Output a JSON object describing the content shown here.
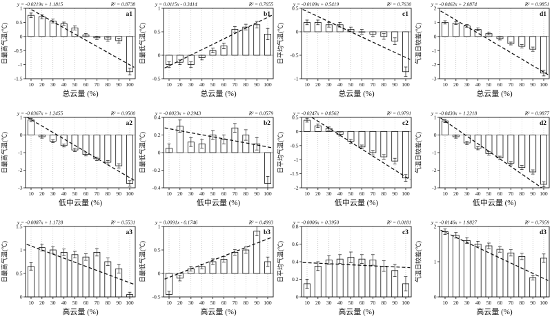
{
  "figure": {
    "layout": "3x4 grid of bar charts with error bars and dashed linear trend lines",
    "background": "#ffffff",
    "accent_color": "#111111",
    "bar_fill": "#ffffff",
    "bar_stroke": "#111111"
  },
  "chart_data": [
    {
      "type": "bar",
      "panel": "a1",
      "equation": "y = -0.0219x + 1.1815",
      "r2_label": "R² = 0.8738",
      "ylabel": "日最高气温(℃)",
      "xlabel": "总云量 (%)",
      "x": [
        10,
        20,
        30,
        40,
        50,
        60,
        70,
        80,
        90,
        100
      ],
      "xticks": [
        10,
        20,
        30,
        40,
        50,
        60,
        70,
        80,
        90,
        100
      ],
      "xlim": [
        5,
        105
      ],
      "ylim": [
        -1.5,
        1
      ],
      "yticks": [
        1,
        0.5,
        0,
        -0.5,
        -1,
        -1.5
      ],
      "values": [
        0.75,
        0.7,
        0.55,
        0.45,
        0.3,
        0.05,
        -0.05,
        -0.1,
        -0.15,
        -1.25
      ],
      "errors": [
        0.08,
        0.07,
        0.07,
        0.06,
        0.07,
        0.06,
        0.06,
        0.07,
        0.08,
        0.12
      ],
      "trend": {
        "slope": -0.0219,
        "intercept": 1.1815
      },
      "grid": "vertical-dotted",
      "legend": "none"
    },
    {
      "type": "bar",
      "panel": "b1",
      "equation": "y = 0.0115x - 0.3414",
      "r2_label": "R² = 0.7655",
      "ylabel": "日最低气温(℃)",
      "xlabel": "总云量 (%)",
      "x": [
        10,
        20,
        30,
        40,
        50,
        60,
        70,
        80,
        90,
        100
      ],
      "xticks": [
        10,
        20,
        30,
        40,
        50,
        60,
        70,
        80,
        90,
        100
      ],
      "xlim": [
        5,
        105
      ],
      "ylim": [
        -0.5,
        1
      ],
      "yticks": [
        1,
        0.5,
        0,
        -0.5
      ],
      "values": [
        -0.2,
        -0.15,
        -0.2,
        -0.05,
        0.1,
        0.2,
        0.55,
        0.6,
        0.65,
        0.45
      ],
      "errors": [
        0.06,
        0.05,
        0.06,
        0.05,
        0.05,
        0.06,
        0.06,
        0.06,
        0.07,
        0.12
      ],
      "trend": {
        "slope": 0.0115,
        "intercept": -0.3414
      },
      "grid": "vertical-dotted",
      "legend": "none"
    },
    {
      "type": "bar",
      "panel": "c1",
      "equation": "y = -0.0109x + 0.5419",
      "r2_label": "R² = 0.7630",
      "ylabel": "日平均气温(℃)",
      "xlabel": "总云量 (%)",
      "x": [
        10,
        20,
        30,
        40,
        50,
        60,
        70,
        80,
        90,
        100
      ],
      "xticks": [
        10,
        20,
        30,
        40,
        50,
        60,
        70,
        80,
        90,
        100
      ],
      "xlim": [
        5,
        105
      ],
      "ylim": [
        -1,
        0.5
      ],
      "yticks": [
        0.5,
        0,
        -0.5,
        -1
      ],
      "values": [
        0.2,
        0.2,
        0.15,
        0.15,
        0.05,
        0,
        -0.05,
        -0.1,
        -0.2,
        -0.85
      ],
      "errors": [
        0.05,
        0.05,
        0.05,
        0.05,
        0.05,
        0.05,
        0.05,
        0.06,
        0.07,
        0.1
      ],
      "trend": {
        "slope": -0.0109,
        "intercept": 0.5419
      },
      "grid": "vertical-dotted",
      "legend": "none"
    },
    {
      "type": "bar",
      "panel": "d1",
      "equation": "y = -0.0462x + 2.0874",
      "r2_label": "R² = 0.9851",
      "ylabel": "气温日较差(℃)",
      "xlabel": "总云量 (%)",
      "x": [
        10,
        20,
        30,
        40,
        50,
        60,
        70,
        80,
        90,
        100
      ],
      "xticks": [
        10,
        20,
        30,
        40,
        50,
        60,
        70,
        80,
        90,
        100
      ],
      "xlim": [
        5,
        105
      ],
      "ylim": [
        -3,
        2
      ],
      "yticks": [
        2,
        1,
        0,
        -1,
        -2,
        -3
      ],
      "values": [
        1.0,
        0.95,
        0.75,
        0.5,
        0.2,
        -0.15,
        -0.5,
        -0.7,
        -0.9,
        -2.6
      ],
      "errors": [
        0.12,
        0.1,
        0.1,
        0.1,
        0.1,
        0.1,
        0.1,
        0.12,
        0.15,
        0.2
      ],
      "trend": {
        "slope": -0.0462,
        "intercept": 2.0874
      },
      "grid": "vertical-dotted",
      "legend": "none"
    },
    {
      "type": "bar",
      "panel": "a2",
      "equation": "y = -0.0367x + 1.2455",
      "r2_label": "R² = 0.9500",
      "ylabel": "日最高气温(℃)",
      "xlabel": "低中云量 (%)",
      "x": [
        10,
        20,
        30,
        40,
        50,
        60,
        70,
        80,
        90,
        100
      ],
      "xticks": [
        10,
        20,
        30,
        40,
        50,
        60,
        70,
        80,
        90,
        100
      ],
      "xlim": [
        5,
        105
      ],
      "ylim": [
        -3,
        1
      ],
      "yticks": [
        1,
        0,
        -1,
        -2,
        -3
      ],
      "values": [
        0.85,
        -0.1,
        -0.35,
        -0.6,
        -0.85,
        -1.1,
        -1.35,
        -1.55,
        -1.75,
        -2.75
      ],
      "errors": [
        0.1,
        0.08,
        0.08,
        0.08,
        0.09,
        0.09,
        0.1,
        0.1,
        0.12,
        0.15
      ],
      "trend": {
        "slope": -0.0367,
        "intercept": 1.2455
      },
      "grid": "vertical-dotted",
      "legend": "none"
    },
    {
      "type": "bar",
      "panel": "b2",
      "equation": "y = -0.0023x + 0.2943",
      "r2_label": "R² = 0.0579",
      "ylabel": "日最低气温(℃)",
      "xlabel": "低中云量 (%)",
      "x": [
        10,
        20,
        30,
        40,
        50,
        60,
        70,
        80,
        90,
        100
      ],
      "xticks": [
        10,
        20,
        30,
        40,
        50,
        60,
        70,
        80,
        90,
        100
      ],
      "xlim": [
        5,
        105
      ],
      "ylim": [
        -0.4,
        0.4
      ],
      "yticks": [
        0.4,
        0.2,
        0,
        -0.2,
        -0.4
      ],
      "values": [
        0.05,
        0.3,
        0.12,
        0.1,
        0.2,
        0.15,
        0.28,
        0.2,
        0.1,
        -0.35
      ],
      "errors": [
        0.05,
        0.07,
        0.05,
        0.05,
        0.05,
        0.05,
        0.05,
        0.06,
        0.07,
        0.08
      ],
      "trend": {
        "slope": -0.0023,
        "intercept": 0.2943
      },
      "grid": "vertical-dotted",
      "legend": "none"
    },
    {
      "type": "bar",
      "panel": "c2",
      "equation": "y = -0.0247x + 0.8562",
      "r2_label": "R² = 0.9791",
      "ylabel": "日平均气温(℃)",
      "xlabel": "低中云量 (%)",
      "x": [
        10,
        20,
        30,
        40,
        50,
        60,
        70,
        80,
        90,
        100
      ],
      "xticks": [
        10,
        20,
        30,
        40,
        50,
        60,
        70,
        80,
        90,
        100
      ],
      "xlim": [
        5,
        105
      ],
      "ylim": [
        -2,
        0.5
      ],
      "yticks": [
        0.5,
        0,
        -0.5,
        -1,
        -1.5,
        -2
      ],
      "values": [
        0.4,
        0.2,
        0.1,
        -0.1,
        -0.35,
        -0.55,
        -0.75,
        -0.9,
        -1.05,
        -1.65
      ],
      "errors": [
        0.07,
        0.06,
        0.06,
        0.06,
        0.07,
        0.07,
        0.08,
        0.08,
        0.1,
        0.12
      ],
      "trend": {
        "slope": -0.0247,
        "intercept": 0.8562
      },
      "grid": "vertical-dotted",
      "legend": "none"
    },
    {
      "type": "bar",
      "panel": "d2",
      "equation": "y = -0.0430x + 1.2218",
      "r2_label": "R² = 0.9877",
      "ylabel": "气温日较差(℃)",
      "xlabel": "低中云量 (%)",
      "x": [
        10,
        20,
        30,
        40,
        50,
        60,
        70,
        80,
        90,
        100
      ],
      "xticks": [
        10,
        20,
        30,
        40,
        50,
        60,
        70,
        80,
        90,
        100
      ],
      "xlim": [
        5,
        105
      ],
      "ylim": [
        -3,
        1
      ],
      "yticks": [
        1,
        0,
        -1,
        -2,
        -3
      ],
      "values": [
        0.8,
        -0.1,
        -0.45,
        -0.75,
        -1.05,
        -1.3,
        -1.6,
        -1.85,
        -2.1,
        -2.8
      ],
      "errors": [
        0.1,
        0.08,
        0.09,
        0.09,
        0.1,
        0.1,
        0.1,
        0.12,
        0.12,
        0.15
      ],
      "trend": {
        "slope": -0.043,
        "intercept": 1.2218
      },
      "grid": "vertical-dotted",
      "legend": "none"
    },
    {
      "type": "bar",
      "panel": "a3",
      "equation": "y = -0.0087x + 1.1728",
      "r2_label": "R² = 0.5531",
      "ylabel": "日最高气温(℃)",
      "xlabel": "高云量 (%)",
      "x": [
        10,
        20,
        30,
        40,
        50,
        60,
        70,
        80,
        90,
        100
      ],
      "xticks": [
        10,
        20,
        30,
        40,
        50,
        60,
        70,
        80,
        90,
        100
      ],
      "xlim": [
        5,
        105
      ],
      "ylim": [
        0,
        1.5
      ],
      "yticks": [
        1.5,
        1,
        0.5,
        0
      ],
      "values": [
        0.65,
        1.05,
        1.0,
        0.95,
        0.9,
        0.85,
        0.95,
        0.75,
        0.6,
        0.05
      ],
      "errors": [
        0.08,
        0.07,
        0.07,
        0.07,
        0.07,
        0.07,
        0.08,
        0.08,
        0.09,
        0.05
      ],
      "trend": {
        "slope": -0.0087,
        "intercept": 1.1728
      },
      "grid": "vertical-dotted",
      "legend": "none"
    },
    {
      "type": "bar",
      "panel": "b3",
      "equation": "y = 0.0091x - 0.1746",
      "r2_label": "R² = 0.4993",
      "ylabel": "日最低气温(℃)",
      "xlabel": "高云量 (%)",
      "x": [
        10,
        20,
        30,
        40,
        50,
        60,
        70,
        80,
        90,
        100
      ],
      "xticks": [
        10,
        20,
        30,
        40,
        50,
        60,
        70,
        80,
        90,
        100
      ],
      "xlim": [
        5,
        105
      ],
      "ylim": [
        -0.5,
        1
      ],
      "yticks": [
        1,
        0.5,
        0,
        -0.5
      ],
      "values": [
        -0.45,
        -0.1,
        0.1,
        0.15,
        0.25,
        0.3,
        0.45,
        0.5,
        0.9,
        0.25
      ],
      "errors": [
        0.07,
        0.06,
        0.05,
        0.05,
        0.06,
        0.06,
        0.06,
        0.07,
        0.1,
        0.1
      ],
      "trend": {
        "slope": 0.0091,
        "intercept": -0.1746
      },
      "grid": "vertical-dotted",
      "legend": "none"
    },
    {
      "type": "bar",
      "panel": "c3",
      "equation": "y = -0.0006x + 0.3950",
      "r2_label": "R² = 0.0181",
      "ylabel": "日平均气温(℃)",
      "xlabel": "高云量 (%)",
      "x": [
        10,
        20,
        30,
        40,
        50,
        60,
        70,
        80,
        90,
        100
      ],
      "xticks": [
        10,
        20,
        30,
        40,
        50,
        60,
        70,
        80,
        90,
        100
      ],
      "xlim": [
        5,
        105
      ],
      "ylim": [
        0,
        0.8
      ],
      "yticks": [
        0.8,
        0.6,
        0.4,
        0.2,
        0
      ],
      "values": [
        0.15,
        0.35,
        0.42,
        0.43,
        0.45,
        0.43,
        0.42,
        0.35,
        0.3,
        0.15
      ],
      "errors": [
        0.05,
        0.05,
        0.05,
        0.05,
        0.06,
        0.05,
        0.06,
        0.06,
        0.07,
        0.08
      ],
      "trend": {
        "slope": -0.0006,
        "intercept": 0.395
      },
      "grid": "vertical-dotted",
      "legend": "none"
    },
    {
      "type": "bar",
      "panel": "d3",
      "equation": "y = -0.0146x + 1.9827",
      "r2_label": "R² = 0.7959",
      "ylabel": "气温日较差(℃)",
      "xlabel": "高云量 (%)",
      "x": [
        10,
        20,
        30,
        40,
        50,
        60,
        70,
        80,
        90,
        100
      ],
      "xticks": [
        10,
        20,
        30,
        40,
        50,
        60,
        70,
        80,
        90,
        100
      ],
      "xlim": [
        5,
        105
      ],
      "ylim": [
        0,
        2
      ],
      "yticks": [
        2,
        1,
        0
      ],
      "values": [
        1.85,
        1.75,
        1.6,
        1.5,
        1.45,
        1.35,
        1.25,
        1.15,
        0.55,
        1.1
      ],
      "errors": [
        0.08,
        0.08,
        0.08,
        0.08,
        0.08,
        0.08,
        0.09,
        0.09,
        0.07,
        0.12
      ],
      "trend": {
        "slope": -0.0146,
        "intercept": 1.9827
      },
      "grid": "vertical-dotted",
      "legend": "none"
    }
  ]
}
